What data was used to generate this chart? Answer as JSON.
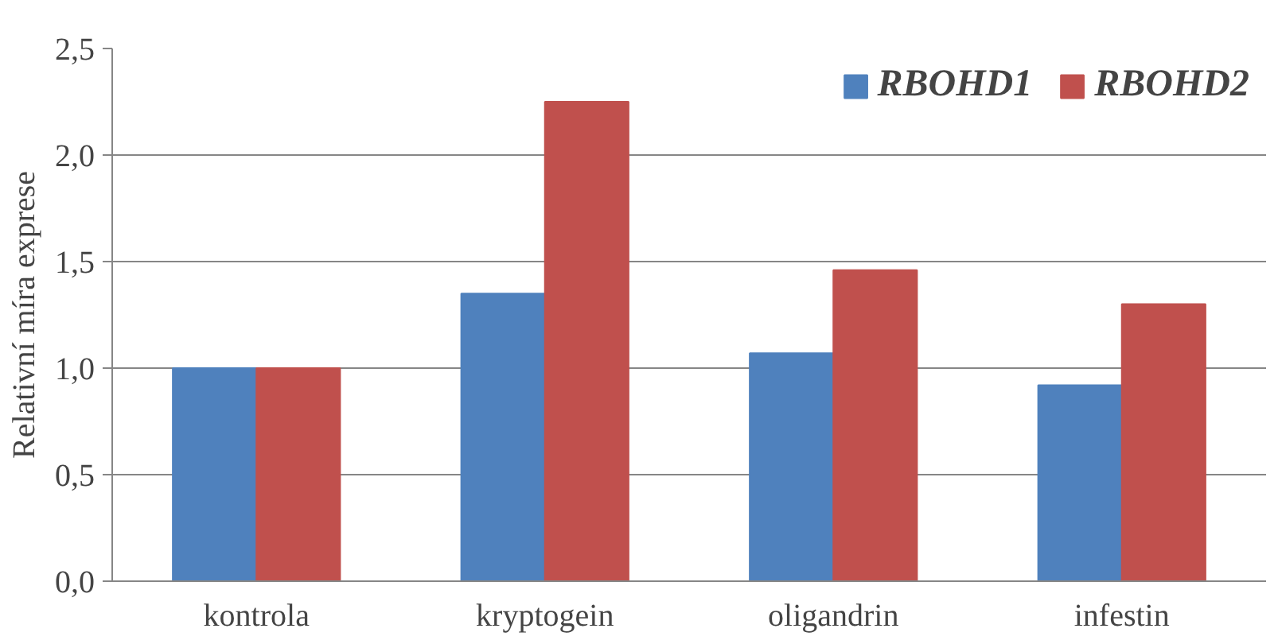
{
  "chart_data": {
    "type": "bar",
    "ylabel": "Relativní míra exprese",
    "categories": [
      "kontrola",
      "kryptogein",
      "oligandrin",
      "infestin"
    ],
    "series": [
      {
        "name": "RBOHD1",
        "color": "#4f81bd",
        "values": [
          1.0,
          1.35,
          1.07,
          0.92
        ]
      },
      {
        "name": "RBOHD2",
        "color": "#c0504d",
        "values": [
          1.0,
          2.25,
          1.46,
          1.3
        ]
      }
    ],
    "ylim": [
      0,
      2.5
    ],
    "yticks": [
      {
        "value": 0,
        "label": "0,0"
      },
      {
        "value": 0.5,
        "label": "0,5"
      },
      {
        "value": 1,
        "label": "1,0"
      },
      {
        "value": 1.5,
        "label": "1,5"
      },
      {
        "value": 2,
        "label": "2,0"
      },
      {
        "value": 2.5,
        "label": "2,5"
      }
    ],
    "grid": "y",
    "legend": "top right"
  }
}
